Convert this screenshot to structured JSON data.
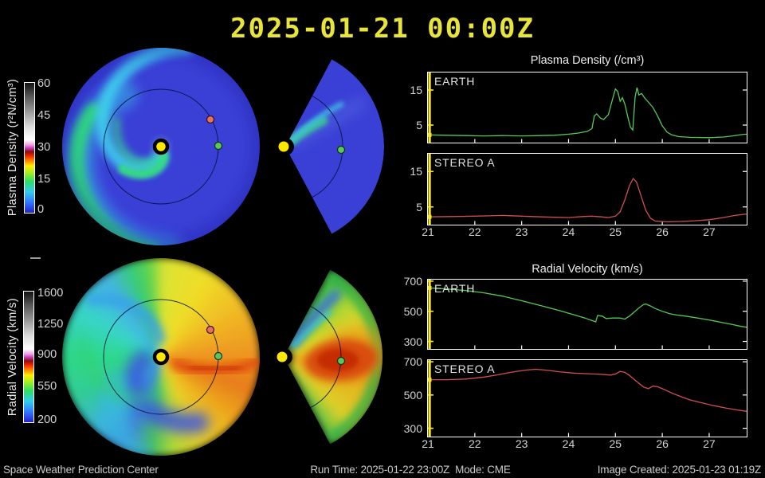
{
  "title": "2025-01-21 00:00Z",
  "colors": {
    "background": "#000000",
    "title_text": "#e8e43a",
    "axis_text": "#d4d4d4",
    "chart_border": "#ffffff",
    "earth_line": "#55c855",
    "stereo_line": "#d05050",
    "time_marker": "#f5e628",
    "footer_text": "#c9c9c9",
    "sun_marker": "#ffe800",
    "earth_marker": "#5cc85c",
    "stereo_a_marker": "#e87060"
  },
  "colorbars": [
    {
      "label": "Plasma Density (r²N/cm³)",
      "ticks": [
        "60",
        "45",
        "30",
        "15",
        "0"
      ],
      "stops": [
        [
          "#2222cc",
          0
        ],
        [
          "#3377ff",
          8
        ],
        [
          "#33ccee",
          16
        ],
        [
          "#2edd66",
          24
        ],
        [
          "#a8ee22",
          31
        ],
        [
          "#ffee00",
          36
        ],
        [
          "#ff8800",
          40
        ],
        [
          "#ee2200",
          44
        ],
        [
          "#881111",
          47
        ],
        [
          "#cc44cc",
          50
        ],
        [
          "#ee99dd",
          52
        ],
        [
          "#ffffff",
          56
        ],
        [
          "#dddddd",
          66
        ],
        [
          "#999999",
          78
        ],
        [
          "#555555",
          90
        ],
        [
          "#111111",
          100
        ]
      ]
    },
    {
      "label": "Radial Velocity (km/s)",
      "ticks": [
        "1600",
        "1250",
        "900",
        "550",
        "200"
      ],
      "stops": [
        [
          "#2222cc",
          0
        ],
        [
          "#3377ff",
          8
        ],
        [
          "#33ccee",
          16
        ],
        [
          "#2edd66",
          24
        ],
        [
          "#a8ee22",
          31
        ],
        [
          "#ffee00",
          36
        ],
        [
          "#ff8800",
          40
        ],
        [
          "#ee2200",
          44
        ],
        [
          "#881111",
          47
        ],
        [
          "#cc44cc",
          50
        ],
        [
          "#ee99dd",
          52
        ],
        [
          "#ffffff",
          56
        ],
        [
          "#dddddd",
          66
        ],
        [
          "#999999",
          78
        ],
        [
          "#555555",
          90
        ],
        [
          "#111111",
          100
        ]
      ]
    }
  ],
  "chart_data": [
    {
      "id": "density_earth",
      "type": "line",
      "title": "Plasma Density (/cm³)",
      "label": "EARTH",
      "color": "#55c855",
      "xlim": [
        21,
        27.8
      ],
      "ylim": [
        0,
        20
      ],
      "x_ticks": [
        21,
        22,
        23,
        24,
        25,
        26,
        27
      ],
      "y_ticks": [
        5,
        15
      ],
      "marker_x": 21,
      "points": [
        [
          21,
          2.2
        ],
        [
          21.4,
          2.1
        ],
        [
          21.8,
          2.0
        ],
        [
          22.2,
          1.9
        ],
        [
          22.6,
          2.0
        ],
        [
          23,
          1.9
        ],
        [
          23.4,
          2.0
        ],
        [
          23.7,
          2.1
        ],
        [
          24,
          2.4
        ],
        [
          24.2,
          2.7
        ],
        [
          24.4,
          3.2
        ],
        [
          24.5,
          4.0
        ],
        [
          24.55,
          7.6
        ],
        [
          24.6,
          8.2
        ],
        [
          24.68,
          7.0
        ],
        [
          24.75,
          6.6
        ],
        [
          24.85,
          8.0
        ],
        [
          24.95,
          13.0
        ],
        [
          25,
          15.3
        ],
        [
          25.05,
          14.6
        ],
        [
          25.1,
          11.8
        ],
        [
          25.15,
          12.8
        ],
        [
          25.2,
          11.0
        ],
        [
          25.27,
          7.0
        ],
        [
          25.32,
          4.4
        ],
        [
          25.37,
          3.6
        ],
        [
          25.42,
          13.0
        ],
        [
          25.46,
          15.7
        ],
        [
          25.5,
          13.6
        ],
        [
          25.56,
          14.0
        ],
        [
          25.62,
          12.8
        ],
        [
          25.7,
          11.6
        ],
        [
          25.8,
          10.0
        ],
        [
          25.9,
          7.6
        ],
        [
          26,
          4.8
        ],
        [
          26.1,
          3.0
        ],
        [
          26.2,
          2.2
        ],
        [
          26.35,
          1.7
        ],
        [
          26.6,
          1.5
        ],
        [
          27,
          1.4
        ],
        [
          27.3,
          1.6
        ],
        [
          27.5,
          1.9
        ],
        [
          27.7,
          2.3
        ],
        [
          27.8,
          2.4
        ]
      ]
    },
    {
      "id": "density_stereo_a",
      "type": "line",
      "label": "STEREO A",
      "color": "#d05050",
      "xlim": [
        21,
        27.8
      ],
      "ylim": [
        0,
        20
      ],
      "x_ticks": [
        21,
        22,
        23,
        24,
        25,
        26,
        27
      ],
      "y_ticks": [
        5,
        15
      ],
      "marker_x": 21,
      "points": [
        [
          21,
          2.2
        ],
        [
          21.5,
          2.3
        ],
        [
          22,
          2.4
        ],
        [
          22.3,
          2.5
        ],
        [
          22.6,
          2.6
        ],
        [
          23,
          2.4
        ],
        [
          23.4,
          2.2
        ],
        [
          23.7,
          2.1
        ],
        [
          24,
          2.0
        ],
        [
          24.3,
          2.3
        ],
        [
          24.5,
          2.4
        ],
        [
          24.7,
          2.2
        ],
        [
          24.85,
          2.0
        ],
        [
          25,
          2.4
        ],
        [
          25.1,
          3.6
        ],
        [
          25.2,
          7.0
        ],
        [
          25.3,
          11.0
        ],
        [
          25.38,
          13.0
        ],
        [
          25.45,
          12.0
        ],
        [
          25.55,
          8.0
        ],
        [
          25.65,
          4.0
        ],
        [
          25.75,
          1.8
        ],
        [
          25.85,
          1.0
        ],
        [
          26.1,
          0.8
        ],
        [
          26.4,
          0.9
        ],
        [
          26.7,
          1.1
        ],
        [
          27,
          1.4
        ],
        [
          27.3,
          2.0
        ],
        [
          27.55,
          2.6
        ],
        [
          27.8,
          3.0
        ]
      ]
    },
    {
      "id": "velocity_earth",
      "type": "line",
      "title": "Radial Velocity (km/s)",
      "label": "EARTH",
      "color": "#55c855",
      "xlim": [
        21,
        27.8
      ],
      "ylim": [
        250,
        710
      ],
      "x_ticks": [
        21,
        22,
        23,
        24,
        25,
        26,
        27
      ],
      "y_ticks": [
        300,
        500,
        700
      ],
      "marker_x": 21,
      "points": [
        [
          21,
          655
        ],
        [
          21.4,
          648
        ],
        [
          21.8,
          638
        ],
        [
          22.2,
          622
        ],
        [
          22.6,
          600
        ],
        [
          23,
          570
        ],
        [
          23.4,
          538
        ],
        [
          23.8,
          505
        ],
        [
          24.1,
          478
        ],
        [
          24.35,
          455
        ],
        [
          24.5,
          438
        ],
        [
          24.58,
          430
        ],
        [
          24.62,
          472
        ],
        [
          24.72,
          468
        ],
        [
          24.8,
          452
        ],
        [
          24.95,
          455
        ],
        [
          25.1,
          455
        ],
        [
          25.2,
          448
        ],
        [
          25.3,
          468
        ],
        [
          25.4,
          495
        ],
        [
          25.5,
          522
        ],
        [
          25.6,
          545
        ],
        [
          25.65,
          548
        ],
        [
          25.75,
          535
        ],
        [
          25.85,
          518
        ],
        [
          26,
          500
        ],
        [
          26.15,
          485
        ],
        [
          26.3,
          475
        ],
        [
          26.5,
          468
        ],
        [
          26.7,
          458
        ],
        [
          26.9,
          448
        ],
        [
          27.1,
          436
        ],
        [
          27.3,
          424
        ],
        [
          27.5,
          412
        ],
        [
          27.65,
          402
        ],
        [
          27.8,
          394
        ]
      ]
    },
    {
      "id": "velocity_stereo_a",
      "type": "line",
      "label": "STEREO A",
      "color": "#d05050",
      "xlim": [
        21,
        27.8
      ],
      "ylim": [
        250,
        710
      ],
      "x_ticks": [
        21,
        22,
        23,
        24,
        25,
        26,
        27
      ],
      "y_ticks": [
        300,
        500,
        700
      ],
      "marker_x": 21,
      "points": [
        [
          21,
          592
        ],
        [
          21.4,
          592
        ],
        [
          21.8,
          596
        ],
        [
          22.2,
          608
        ],
        [
          22.5,
          622
        ],
        [
          22.8,
          638
        ],
        [
          23.1,
          650
        ],
        [
          23.3,
          655
        ],
        [
          23.5,
          650
        ],
        [
          23.8,
          640
        ],
        [
          24.1,
          632
        ],
        [
          24.4,
          628
        ],
        [
          24.7,
          624
        ],
        [
          24.9,
          620
        ],
        [
          25,
          626
        ],
        [
          25.1,
          642
        ],
        [
          25.2,
          636
        ],
        [
          25.3,
          618
        ],
        [
          25.45,
          582
        ],
        [
          25.6,
          548
        ],
        [
          25.7,
          538
        ],
        [
          25.8,
          554
        ],
        [
          25.9,
          550
        ],
        [
          26.05,
          532
        ],
        [
          26.2,
          512
        ],
        [
          26.4,
          490
        ],
        [
          26.6,
          470
        ],
        [
          26.85,
          452
        ],
        [
          27.1,
          436
        ],
        [
          27.35,
          422
        ],
        [
          27.6,
          410
        ],
        [
          27.8,
          402
        ]
      ]
    },
    {
      "id": "density_map",
      "type": "heatmap",
      "quantity": "Plasma Density (r²N/cm³)",
      "views": [
        "ecliptic disk",
        "meridional wedge"
      ],
      "scale": {
        "min": 0,
        "max": 60,
        "ticks": [
          0,
          15,
          30,
          45,
          60
        ]
      },
      "markers": [
        "sun",
        "earth",
        "stereo_a"
      ]
    },
    {
      "id": "velocity_map",
      "type": "heatmap",
      "quantity": "Radial Velocity (km/s)",
      "views": [
        "ecliptic disk",
        "meridional wedge"
      ],
      "scale": {
        "min": 200,
        "max": 1600,
        "ticks": [
          200,
          550,
          900,
          1250,
          1600
        ]
      },
      "markers": [
        "sun",
        "earth",
        "stereo_a"
      ]
    }
  ],
  "footer": {
    "left": "Space Weather Prediction Center",
    "center": "Run Time: 2025-01-22 23:00Z  Mode: CME",
    "right": "Image Created: 2025-01-23 01:19Z"
  }
}
